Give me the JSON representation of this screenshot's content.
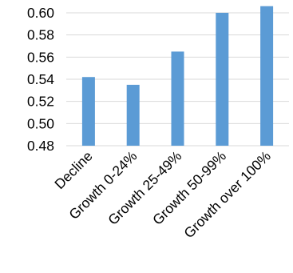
{
  "chart_data": {
    "type": "bar",
    "categories": [
      "Decline",
      "Growth 0-24%",
      "Growth 25-49%",
      "Growth 50-99%",
      "Growth over 100%"
    ],
    "values": [
      0.542,
      0.535,
      0.565,
      0.6,
      0.606
    ],
    "ylim": [
      0.48,
      0.6
    ],
    "yticks": [
      "0.60",
      "0.58",
      "0.56",
      "0.54",
      "0.52",
      "0.50",
      "0.48"
    ],
    "ytick_values": [
      0.6,
      0.58,
      0.56,
      0.54,
      0.52,
      0.5,
      0.48
    ],
    "grid": true,
    "legend": "none",
    "bar_color": "#5b9bd5",
    "grid_color": "#d9d9d9"
  }
}
